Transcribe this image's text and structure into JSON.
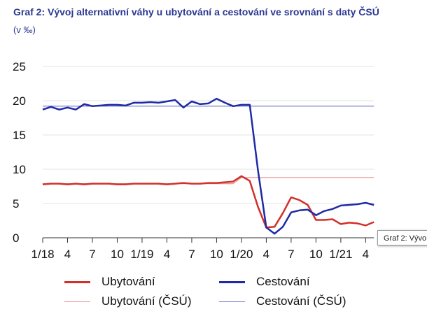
{
  "title": "Graf 2: Vývoj alternativní váhy u ubytování a cestování ve srovnání s daty ČSÚ",
  "subtitle": "(v ‰)",
  "tooltip_text": "Graf 2: Vývo",
  "colors": {
    "ubytovani": "#d2302a",
    "cestovani": "#1f2aa6",
    "ubytovani_csu": "#e8948f",
    "cestovani_csu": "#6f78c8",
    "title": "#2b3890"
  },
  "chart_data": {
    "type": "line",
    "title": "Graf 2: Vývoj alternativní váhy u ubytování a cestování ve srovnání s daty ČSÚ",
    "ylabel": "(v ‰)",
    "ylim": [
      0,
      25
    ],
    "yticks": [
      0,
      5,
      10,
      15,
      20,
      25
    ],
    "grid": true,
    "legend_position": "bottom",
    "x_tick_labels": [
      {
        "index": 0,
        "label": "1/18"
      },
      {
        "index": 3,
        "label": "4"
      },
      {
        "index": 6,
        "label": "7"
      },
      {
        "index": 9,
        "label": "10"
      },
      {
        "index": 12,
        "label": "1/19"
      },
      {
        "index": 15,
        "label": "4"
      },
      {
        "index": 18,
        "label": "7"
      },
      {
        "index": 21,
        "label": "10"
      },
      {
        "index": 24,
        "label": "1/20"
      },
      {
        "index": 27,
        "label": "4"
      },
      {
        "index": 30,
        "label": "7"
      },
      {
        "index": 33,
        "label": "10"
      },
      {
        "index": 36,
        "label": "1/21"
      },
      {
        "index": 39,
        "label": "4"
      }
    ],
    "n_points": 41,
    "series": [
      {
        "name": "Ubytování",
        "values": [
          7.8,
          7.9,
          7.9,
          7.8,
          7.9,
          7.8,
          7.9,
          7.9,
          7.9,
          7.8,
          7.8,
          7.9,
          7.9,
          7.9,
          7.9,
          7.8,
          7.9,
          8.0,
          7.9,
          7.9,
          8.0,
          8.0,
          8.1,
          8.2,
          9.0,
          8.3,
          4.5,
          1.5,
          1.6,
          3.6,
          5.9,
          5.5,
          4.8,
          2.6,
          2.6,
          2.7,
          2.0,
          2.2,
          2.1,
          1.8,
          2.3
        ]
      },
      {
        "name": "Cestování",
        "values": [
          18.7,
          19.1,
          18.7,
          19.0,
          18.7,
          19.5,
          19.2,
          19.3,
          19.4,
          19.4,
          19.3,
          19.7,
          19.7,
          19.8,
          19.7,
          19.9,
          20.1,
          19.0,
          19.9,
          19.5,
          19.6,
          20.3,
          19.7,
          19.2,
          19.4,
          19.4,
          9.8,
          1.5,
          0.6,
          1.6,
          3.7,
          4.0,
          4.1,
          3.3,
          3.9,
          4.2,
          4.7,
          4.8,
          4.9,
          5.1,
          4.8
        ]
      },
      {
        "name": "Ubytování (ČSÚ)",
        "values": [
          7.9,
          7.9,
          7.9,
          7.9,
          7.9,
          7.9,
          7.9,
          7.9,
          7.9,
          7.9,
          7.9,
          7.9,
          7.9,
          7.9,
          7.9,
          7.9,
          7.9,
          7.9,
          7.9,
          7.9,
          7.9,
          7.9,
          7.9,
          7.9,
          8.8,
          8.8,
          8.8,
          8.8,
          8.8,
          8.8,
          8.8,
          8.8,
          8.8,
          8.8,
          8.8,
          8.8,
          8.8,
          8.8,
          8.8,
          8.8,
          8.8
        ]
      },
      {
        "name": "Cestování (ČSÚ)",
        "values": [
          19.2,
          19.2,
          19.2,
          19.2,
          19.2,
          19.2,
          19.2,
          19.2,
          19.2,
          19.2,
          19.2,
          19.2,
          19.2,
          19.2,
          19.2,
          19.2,
          19.2,
          19.2,
          19.2,
          19.2,
          19.2,
          19.2,
          19.2,
          19.2,
          19.2,
          19.2,
          19.2,
          19.2,
          19.2,
          19.2,
          19.2,
          19.2,
          19.2,
          19.2,
          19.2,
          19.2,
          19.2,
          19.2,
          19.2,
          19.2,
          19.2
        ]
      }
    ]
  },
  "legend": [
    {
      "label": "Ubytování",
      "color": "#d2302a",
      "style": "thick"
    },
    {
      "label": "Cestování",
      "color": "#1f2aa6",
      "style": "thick"
    },
    {
      "label": "Ubytování (ČSÚ)",
      "color": "#e8948f",
      "style": "thin"
    },
    {
      "label": "Cestování (ČSÚ)",
      "color": "#6f78c8",
      "style": "thin"
    }
  ]
}
